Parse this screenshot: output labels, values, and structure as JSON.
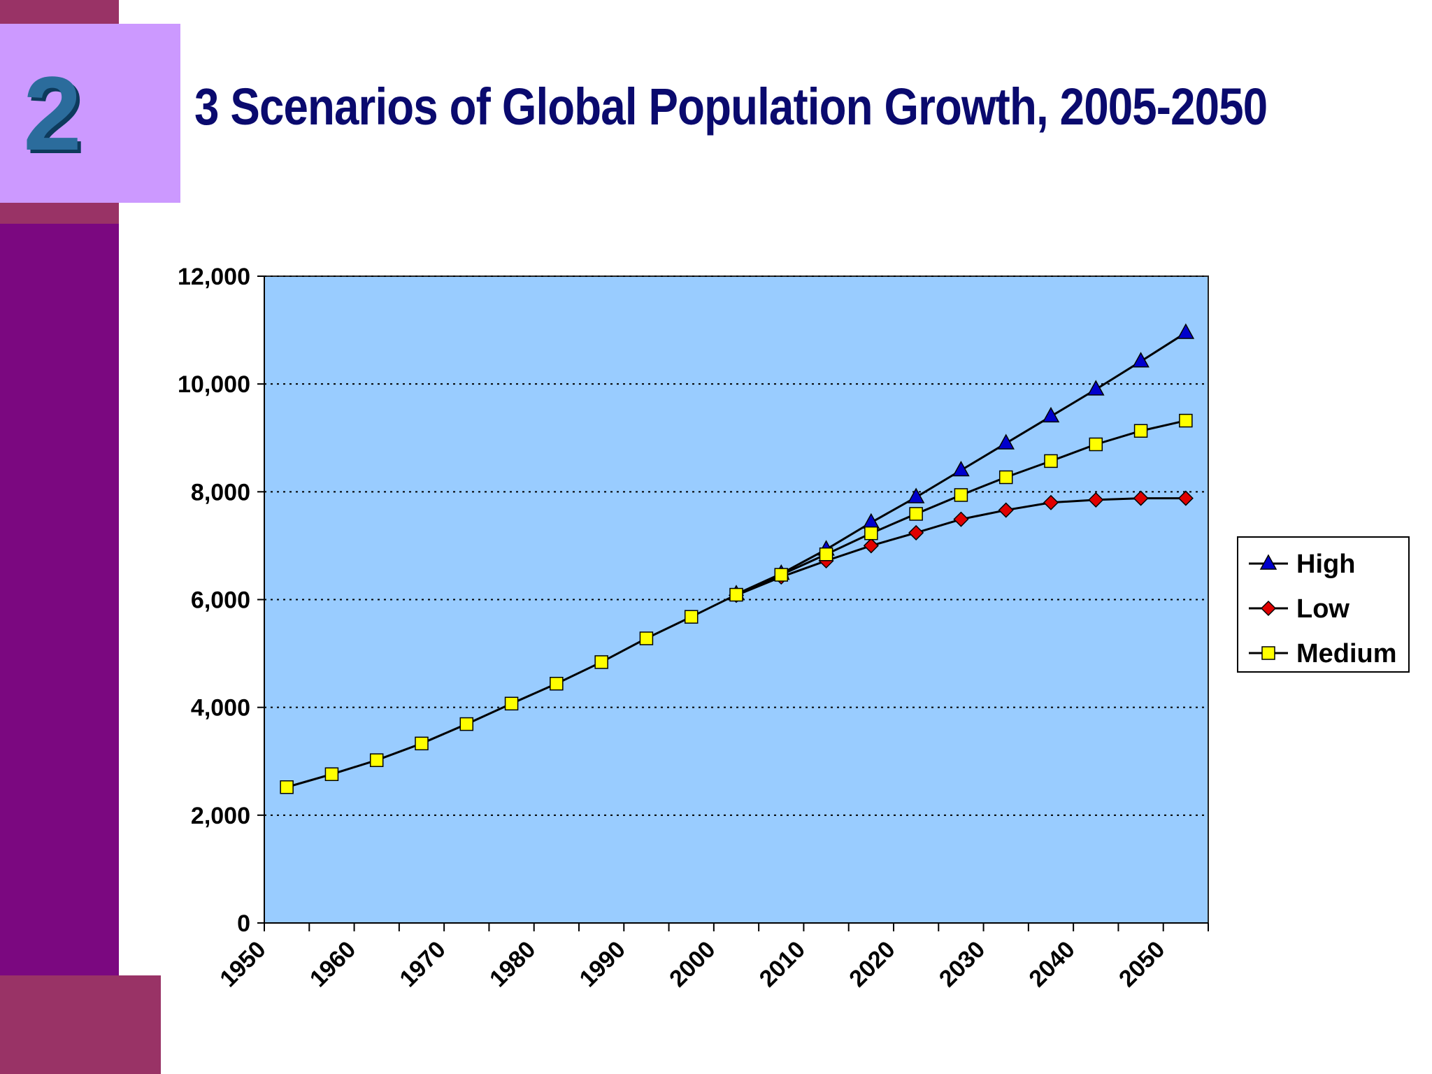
{
  "slide": {
    "number": "2",
    "title": "3 Scenarios of Global Population Growth, 2005-2050"
  },
  "colors": {
    "sidebar": "#7b0880",
    "accent": "#993366",
    "number_box": "#cc99ff",
    "title": "#0a0a6e",
    "plot_background": "#99ccff",
    "high": "#0000cc",
    "low": "#e00000",
    "medium": "#ffff00"
  },
  "chart_data": {
    "type": "line",
    "title": "",
    "xlabel": "",
    "ylabel": "",
    "ylim": [
      0,
      12000
    ],
    "xlim": [
      1950,
      2055
    ],
    "yticks": [
      0,
      2000,
      4000,
      6000,
      8000,
      10000,
      12000
    ],
    "ytick_labels": [
      "0",
      "2,000",
      "4,000",
      "6,000",
      "8,000",
      "10,000",
      "12,000"
    ],
    "xticks": [
      1950,
      1960,
      1970,
      1980,
      1990,
      2000,
      2010,
      2020,
      2030,
      2040,
      2050
    ],
    "xtick_labels": [
      "1950",
      "1960",
      "1970",
      "1980",
      "1990",
      "2000",
      "2010",
      "2020",
      "2030",
      "2040",
      "2050"
    ],
    "grid": "horizontal dotted",
    "legend_position": "right",
    "x": [
      1950,
      1955,
      1960,
      1965,
      1970,
      1975,
      1980,
      1985,
      1990,
      1995,
      2000,
      2005,
      2010,
      2015,
      2020,
      2025,
      2030,
      2035,
      2040,
      2045,
      2050
    ],
    "series": [
      {
        "name": "High",
        "marker": "triangle",
        "color": "#0000cc",
        "values": [
          null,
          null,
          null,
          null,
          null,
          null,
          null,
          null,
          null,
          null,
          6100,
          6480,
          6930,
          7430,
          7900,
          8400,
          8900,
          9400,
          9900,
          10420,
          10950
        ]
      },
      {
        "name": "Low",
        "marker": "diamond",
        "color": "#e00000",
        "values": [
          null,
          null,
          null,
          null,
          null,
          null,
          null,
          null,
          null,
          null,
          6080,
          6420,
          6720,
          7000,
          7240,
          7490,
          7660,
          7800,
          7850,
          7880,
          7880
        ]
      },
      {
        "name": "Medium",
        "marker": "square",
        "color": "#ffff00",
        "values": [
          2520,
          2760,
          3020,
          3330,
          3690,
          4070,
          4440,
          4840,
          5280,
          5680,
          6090,
          6460,
          6840,
          7230,
          7590,
          7940,
          8270,
          8570,
          8880,
          9130,
          9320
        ]
      }
    ]
  }
}
